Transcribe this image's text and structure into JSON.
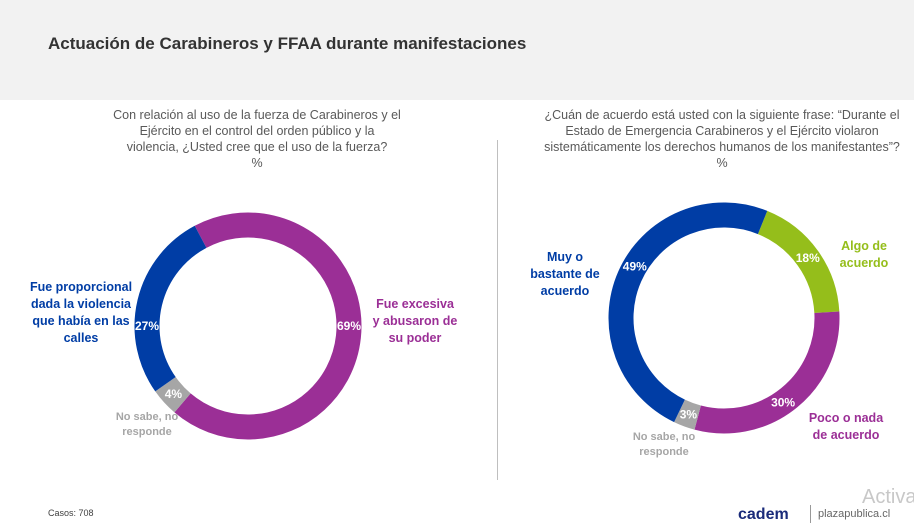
{
  "title": "Actuación de Carabineros y FFAA durante manifestaciones",
  "chart_data": [
    {
      "type": "pie",
      "variant": "donut",
      "question": "Con relación al uso de la fuerza de Carabineros y el Ejército en el control del orden público y la violencia, ¿Usted cree que el uso de la fuerza?",
      "unit": "%",
      "slices": [
        {
          "label": "Fue excesiva y abusaron de su poder",
          "value": 69,
          "value_label": "69%",
          "color": "#9b2f96"
        },
        {
          "label": "No sabe, no responde",
          "value": 4,
          "value_label": "4%",
          "color": "#a6a6a6"
        },
        {
          "label": "Fue proporcional dada la violencia que había en las calles",
          "value": 27,
          "value_label": "27%",
          "color": "#003da5"
        }
      ]
    },
    {
      "type": "pie",
      "variant": "donut",
      "question": "¿Cuán de acuerdo está usted con la siguiente frase: “Durante el Estado de Emergencia Carabineros y el Ejército violaron sistemáticamente los derechos humanos de los manifestantes”?",
      "unit": "%",
      "slices": [
        {
          "label": "Algo de acuerdo",
          "value": 18,
          "value_label": "18%",
          "color": "#95be1b"
        },
        {
          "label": "Poco o nada de acuerdo",
          "value": 30,
          "value_label": "30%",
          "color": "#9b2f96"
        },
        {
          "label": "No sabe, no responde",
          "value": 3,
          "value_label": "3%",
          "color": "#a6a6a6"
        },
        {
          "label": "Muy o bastante de acuerdo",
          "value": 49,
          "value_label": "49%",
          "color": "#003da5"
        }
      ]
    }
  ],
  "footer": {
    "casos": "Casos: 708",
    "logo": "cadem",
    "site": "plazapublica.cl",
    "watermark": "Activa"
  }
}
